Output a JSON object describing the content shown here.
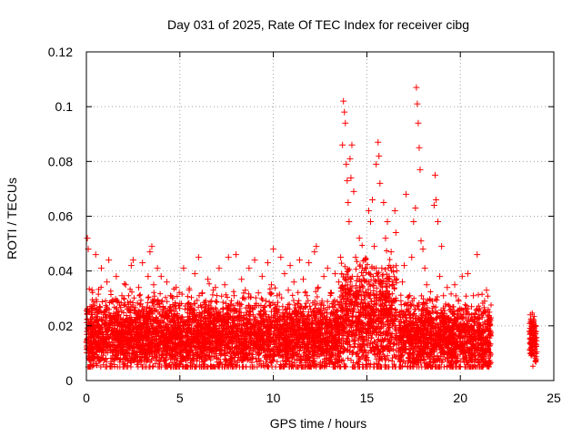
{
  "chart_data": {
    "type": "scatter",
    "title": "Day 031 of 2025, Rate Of TEC Index for receiver cibg",
    "xlabel": "GPS time / hours",
    "ylabel": "ROTI / TECUs",
    "xlim": [
      0,
      25
    ],
    "ylim": [
      0,
      0.12
    ],
    "xticks": [
      0,
      5,
      10,
      15,
      20,
      25
    ],
    "xtick_labels": [
      "0",
      "5",
      "10",
      "15",
      "20",
      "25"
    ],
    "yticks": [
      0,
      0.02,
      0.04,
      0.06,
      0.08,
      0.1,
      0.12
    ],
    "ytick_labels": [
      "0",
      "0.02",
      "0.04",
      "0.06",
      "0.08",
      "0.1",
      "0.12"
    ],
    "grid": true,
    "marker": "plus",
    "color": "#ff0000",
    "series": [
      {
        "name": "ROTI",
        "points": [
          [
            0.0,
            0.014
          ],
          [
            0.05,
            0.052
          ],
          [
            0.1,
            0.048
          ],
          [
            0.15,
            0.021
          ],
          [
            0.2,
            0.009
          ],
          [
            0.3,
            0.033
          ],
          [
            0.4,
            0.018
          ],
          [
            0.5,
            0.046
          ],
          [
            0.6,
            0.012
          ],
          [
            0.7,
            0.027
          ],
          [
            0.8,
            0.041
          ],
          [
            0.9,
            0.016
          ],
          [
            1.0,
            0.022
          ],
          [
            1.1,
            0.036
          ],
          [
            1.2,
            0.044
          ],
          [
            1.3,
            0.011
          ],
          [
            1.4,
            0.029
          ],
          [
            1.5,
            0.019
          ],
          [
            1.6,
            0.038
          ],
          [
            1.7,
            0.024
          ],
          [
            1.8,
            0.013
          ],
          [
            1.9,
            0.031
          ],
          [
            2.0,
            0.017
          ],
          [
            2.1,
            0.035
          ],
          [
            2.2,
            0.026
          ],
          [
            2.3,
            0.014
          ],
          [
            2.4,
            0.042
          ],
          [
            2.5,
            0.044
          ],
          [
            2.6,
            0.021
          ],
          [
            2.7,
            0.012
          ],
          [
            2.8,
            0.034
          ],
          [
            2.9,
            0.028
          ],
          [
            3.0,
            0.043
          ],
          [
            3.1,
            0.016
          ],
          [
            3.2,
            0.025
          ],
          [
            3.3,
            0.038
          ],
          [
            3.4,
            0.047
          ],
          [
            3.5,
            0.049
          ],
          [
            3.6,
            0.035
          ],
          [
            3.7,
            0.018
          ],
          [
            3.8,
            0.041
          ],
          [
            3.9,
            0.028
          ],
          [
            4.0,
            0.038
          ],
          [
            4.1,
            0.012
          ],
          [
            4.2,
            0.024
          ],
          [
            4.3,
            0.036
          ],
          [
            4.4,
            0.019
          ],
          [
            4.5,
            0.031
          ],
          [
            4.6,
            0.009
          ],
          [
            4.7,
            0.022
          ],
          [
            4.8,
            0.034
          ],
          [
            4.9,
            0.015
          ],
          [
            5.0,
            0.028
          ],
          [
            5.1,
            0.018
          ],
          [
            5.2,
            0.041
          ],
          [
            5.3,
            0.011
          ],
          [
            5.4,
            0.026
          ],
          [
            5.5,
            0.033
          ],
          [
            5.6,
            0.021
          ],
          [
            5.7,
            0.014
          ],
          [
            5.8,
            0.039
          ],
          [
            5.9,
            0.024
          ],
          [
            6.0,
            0.045
          ],
          [
            6.1,
            0.012
          ],
          [
            6.2,
            0.032
          ],
          [
            6.3,
            0.019
          ],
          [
            6.4,
            0.027
          ],
          [
            6.5,
            0.037
          ],
          [
            6.6,
            0.016
          ],
          [
            6.7,
            0.029
          ],
          [
            6.8,
            0.011
          ],
          [
            6.9,
            0.034
          ],
          [
            7.0,
            0.022
          ],
          [
            7.1,
            0.041
          ],
          [
            7.2,
            0.015
          ],
          [
            7.3,
            0.026
          ],
          [
            7.4,
            0.035
          ],
          [
            7.5,
            0.018
          ],
          [
            7.6,
            0.045
          ],
          [
            7.7,
            0.023
          ],
          [
            7.8,
            0.012
          ],
          [
            7.9,
            0.031
          ],
          [
            8.0,
            0.046
          ],
          [
            8.1,
            0.019
          ],
          [
            8.2,
            0.028
          ],
          [
            8.3,
            0.037
          ],
          [
            8.4,
            0.014
          ],
          [
            8.5,
            0.033
          ],
          [
            8.6,
            0.021
          ],
          [
            8.7,
            0.041
          ],
          [
            8.8,
            0.011
          ],
          [
            8.9,
            0.026
          ],
          [
            9.0,
            0.044
          ],
          [
            9.1,
            0.017
          ],
          [
            9.2,
            0.032
          ],
          [
            9.3,
            0.024
          ],
          [
            9.4,
            0.038
          ],
          [
            9.5,
            0.013
          ],
          [
            9.6,
            0.029
          ],
          [
            9.7,
            0.043
          ],
          [
            9.8,
            0.019
          ],
          [
            9.9,
            0.035
          ],
          [
            10.0,
            0.048
          ],
          [
            10.1,
            0.022
          ],
          [
            10.2,
            0.031
          ],
          [
            10.3,
            0.014
          ],
          [
            10.4,
            0.045
          ],
          [
            10.5,
            0.027
          ],
          [
            10.6,
            0.039
          ],
          [
            10.7,
            0.018
          ],
          [
            10.8,
            0.033
          ],
          [
            10.9,
            0.042
          ],
          [
            11.0,
            0.021
          ],
          [
            11.1,
            0.036
          ],
          [
            11.2,
            0.012
          ],
          [
            11.3,
            0.028
          ],
          [
            11.4,
            0.044
          ],
          [
            11.5,
            0.024
          ],
          [
            11.6,
            0.037
          ],
          [
            11.7,
            0.016
          ],
          [
            11.8,
            0.031
          ],
          [
            11.9,
            0.043
          ],
          [
            12.0,
            0.026
          ],
          [
            12.1,
            0.019
          ],
          [
            12.2,
            0.047
          ],
          [
            12.3,
            0.049
          ],
          [
            12.4,
            0.034
          ],
          [
            12.5,
            0.012
          ],
          [
            12.6,
            0.029
          ],
          [
            12.7,
            0.038
          ],
          [
            12.8,
            0.021
          ],
          [
            12.9,
            0.041
          ],
          [
            13.0,
            0.017
          ],
          [
            13.1,
            0.032
          ],
          [
            13.2,
            0.025
          ],
          [
            13.3,
            0.039
          ],
          [
            13.4,
            0.014
          ],
          [
            13.5,
            0.036
          ],
          [
            13.6,
            0.045
          ],
          [
            13.7,
            0.086
          ],
          [
            13.75,
            0.102
          ],
          [
            13.8,
            0.098
          ],
          [
            13.85,
            0.094
          ],
          [
            13.9,
            0.079
          ],
          [
            13.95,
            0.073
          ],
          [
            14.0,
            0.065
          ],
          [
            14.05,
            0.058
          ],
          [
            14.1,
            0.081
          ],
          [
            14.15,
            0.074
          ],
          [
            14.2,
            0.086
          ],
          [
            14.3,
            0.069
          ],
          [
            14.4,
            0.045
          ],
          [
            14.5,
            0.038
          ],
          [
            14.6,
            0.052
          ],
          [
            14.7,
            0.031
          ],
          [
            14.8,
            0.028
          ],
          [
            14.9,
            0.044
          ],
          [
            15.0,
            0.036
          ],
          [
            15.1,
            0.062
          ],
          [
            15.2,
            0.058
          ],
          [
            15.3,
            0.066
          ],
          [
            15.4,
            0.049
          ],
          [
            15.5,
            0.079
          ],
          [
            15.6,
            0.087
          ],
          [
            15.65,
            0.082
          ],
          [
            15.7,
            0.072
          ],
          [
            15.8,
            0.041
          ],
          [
            15.9,
            0.065
          ],
          [
            16.0,
            0.052
          ],
          [
            16.1,
            0.058
          ],
          [
            16.2,
            0.038
          ],
          [
            16.3,
            0.047
          ],
          [
            16.4,
            0.029
          ],
          [
            16.5,
            0.062
          ],
          [
            16.55,
            0.054
          ],
          [
            16.6,
            0.013
          ],
          [
            16.7,
            0.008
          ],
          [
            16.8,
            0.018
          ],
          [
            16.9,
            0.036
          ],
          [
            17.0,
            0.042
          ],
          [
            17.1,
            0.068
          ],
          [
            17.2,
            0.025
          ],
          [
            17.3,
            0.031
          ],
          [
            17.4,
            0.045
          ],
          [
            17.5,
            0.058
          ],
          [
            17.6,
            0.063
          ],
          [
            17.65,
            0.107
          ],
          [
            17.7,
            0.101
          ],
          [
            17.75,
            0.094
          ],
          [
            17.8,
            0.085
          ],
          [
            17.85,
            0.077
          ],
          [
            17.9,
            0.051
          ],
          [
            18.0,
            0.048
          ],
          [
            18.1,
            0.041
          ],
          [
            18.2,
            0.035
          ],
          [
            18.3,
            0.022
          ],
          [
            18.4,
            0.018
          ],
          [
            18.5,
            0.029
          ],
          [
            18.6,
            0.064
          ],
          [
            18.65,
            0.075
          ],
          [
            18.7,
            0.066
          ],
          [
            18.8,
            0.058
          ],
          [
            18.9,
            0.038
          ],
          [
            19.0,
            0.049
          ],
          [
            19.1,
            0.031
          ],
          [
            19.2,
            0.018
          ],
          [
            19.3,
            0.034
          ],
          [
            19.4,
            0.012
          ],
          [
            19.5,
            0.026
          ],
          [
            19.6,
            0.021
          ],
          [
            19.7,
            0.035
          ],
          [
            19.8,
            0.014
          ],
          [
            19.9,
            0.029
          ],
          [
            20.0,
            0.018
          ],
          [
            20.1,
            0.038
          ],
          [
            20.2,
            0.011
          ],
          [
            20.3,
            0.023
          ],
          [
            20.4,
            0.039
          ],
          [
            20.5,
            0.016
          ],
          [
            20.6,
            0.027
          ],
          [
            20.7,
            0.031
          ],
          [
            20.8,
            0.012
          ],
          [
            20.9,
            0.046
          ],
          [
            21.0,
            0.024
          ],
          [
            21.1,
            0.017
          ],
          [
            21.2,
            0.006
          ],
          [
            21.3,
            0.029
          ],
          [
            21.4,
            0.033
          ],
          [
            21.5,
            0.019
          ],
          [
            21.6,
            0.022
          ],
          [
            23.7,
            0.018
          ],
          [
            23.75,
            0.024
          ],
          [
            23.8,
            0.011
          ],
          [
            23.85,
            0.015
          ],
          [
            23.9,
            0.022
          ],
          [
            23.95,
            0.009
          ],
          [
            24.0,
            0.017
          ],
          [
            24.05,
            0.013
          ]
        ]
      }
    ]
  }
}
